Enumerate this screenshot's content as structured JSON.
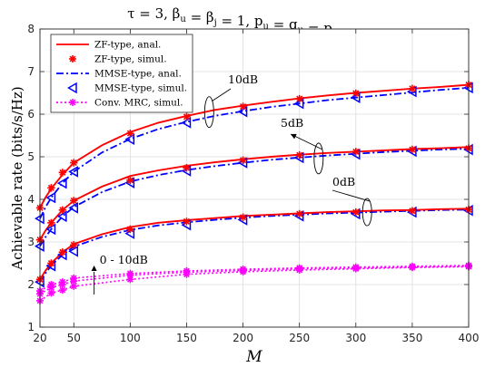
{
  "chart_data": {
    "type": "line",
    "title": "τ = 3, β_u = β_j = 1, p_u = q_u = p_j = q_j",
    "xlabel": "M",
    "ylabel": "Achievable rate (bits/s/Hz)",
    "xlim": [
      20,
      400
    ],
    "ylim": [
      1,
      8
    ],
    "xticks": [
      20,
      50,
      100,
      150,
      200,
      250,
      300,
      350,
      400
    ],
    "yticks": [
      1,
      2,
      3,
      4,
      5,
      6,
      7,
      8
    ],
    "grid": true,
    "legend_position": "top-left",
    "legend": [
      {
        "label": "ZF-type, anal.",
        "color": "#ff0000",
        "style": "solid",
        "marker": "none"
      },
      {
        "label": "ZF-type, simul.",
        "color": "#ff0000",
        "style": "none",
        "marker": "asterisk"
      },
      {
        "label": "MMSE-type, anal.",
        "color": "#0000ff",
        "style": "dashdot",
        "marker": "none"
      },
      {
        "label": "MMSE-type, simul.",
        "color": "#0000ff",
        "style": "none",
        "marker": "triangle-left"
      },
      {
        "label": "Conv. MRC, simul.",
        "color": "#ff00ff",
        "style": "dotted",
        "marker": "asterisk"
      }
    ],
    "x_analytic": [
      20,
      25,
      30,
      40,
      50,
      75,
      100,
      125,
      150,
      175,
      200,
      225,
      250,
      275,
      300,
      325,
      350,
      375,
      400
    ],
    "x_simul": [
      20,
      30,
      40,
      50,
      100,
      150,
      200,
      250,
      300,
      350,
      400
    ],
    "x_mrc": [
      20,
      30,
      40,
      50,
      100,
      150,
      200,
      250,
      300,
      350,
      400
    ],
    "groups": [
      {
        "snr": "10dB",
        "zf_anal": [
          3.8,
          4.05,
          4.25,
          4.58,
          4.86,
          5.27,
          5.58,
          5.8,
          5.96,
          6.1,
          6.2,
          6.29,
          6.37,
          6.44,
          6.5,
          6.55,
          6.6,
          6.64,
          6.69
        ],
        "mmse_anal": [
          3.55,
          3.82,
          4.04,
          4.38,
          4.65,
          5.1,
          5.42,
          5.65,
          5.82,
          5.96,
          6.07,
          6.17,
          6.25,
          6.33,
          6.39,
          6.45,
          6.51,
          6.57,
          6.62
        ],
        "zf_simul": [
          3.8,
          4.27,
          4.63,
          4.86,
          5.55,
          5.94,
          6.18,
          6.36,
          6.49,
          6.6,
          6.69
        ],
        "mmse_simul": [
          3.55,
          4.04,
          4.38,
          4.65,
          5.41,
          5.8,
          6.06,
          6.25,
          6.39,
          6.53,
          6.62
        ]
      },
      {
        "snr": "5dB",
        "zf_anal": [
          3.05,
          3.27,
          3.45,
          3.75,
          3.97,
          4.3,
          4.55,
          4.68,
          4.79,
          4.87,
          4.94,
          5.0,
          5.05,
          5.09,
          5.12,
          5.15,
          5.18,
          5.2,
          5.23
        ],
        "mmse_anal": [
          2.9,
          3.12,
          3.3,
          3.6,
          3.82,
          4.17,
          4.42,
          4.57,
          4.69,
          4.78,
          4.86,
          4.93,
          4.98,
          5.03,
          5.07,
          5.11,
          5.14,
          5.17,
          5.19
        ],
        "zf_simul": [
          3.05,
          3.45,
          3.75,
          3.97,
          4.45,
          4.74,
          4.92,
          5.04,
          5.12,
          5.17,
          5.2
        ],
        "mmse_simul": [
          2.9,
          3.3,
          3.6,
          3.8,
          4.39,
          4.67,
          4.86,
          4.98,
          5.06,
          5.13,
          5.17
        ]
      },
      {
        "snr": "0dB",
        "zf_anal": [
          2.12,
          2.33,
          2.5,
          2.76,
          2.95,
          3.18,
          3.35,
          3.45,
          3.51,
          3.56,
          3.61,
          3.64,
          3.67,
          3.7,
          3.72,
          3.74,
          3.75,
          3.77,
          3.78
        ],
        "mmse_anal": [
          2.06,
          2.27,
          2.44,
          2.7,
          2.89,
          3.12,
          3.28,
          3.39,
          3.46,
          3.52,
          3.57,
          3.61,
          3.64,
          3.67,
          3.69,
          3.71,
          3.73,
          3.75,
          3.76
        ],
        "zf_simul": [
          2.12,
          2.5,
          2.76,
          2.93,
          3.3,
          3.48,
          3.58,
          3.66,
          3.7,
          3.73,
          3.76
        ],
        "mmse_simul": [
          2.06,
          2.44,
          2.7,
          2.78,
          3.2,
          3.4,
          3.52,
          3.61,
          3.66,
          3.7,
          3.74
        ]
      }
    ],
    "mrc": [
      {
        "snr": "10dB",
        "values": [
          1.85,
          2.0,
          2.06,
          2.15,
          2.26,
          2.32,
          2.36,
          2.39,
          2.41,
          2.43,
          2.45
        ]
      },
      {
        "snr": "5dB",
        "values": [
          1.78,
          1.93,
          2.0,
          2.08,
          2.22,
          2.29,
          2.33,
          2.37,
          2.39,
          2.41,
          2.43
        ]
      },
      {
        "snr": "0dB",
        "values": [
          1.62,
          1.8,
          1.87,
          1.96,
          2.12,
          2.24,
          2.3,
          2.34,
          2.37,
          2.4,
          2.42
        ]
      }
    ],
    "annotations": [
      "10dB",
      "5dB",
      "0dB",
      "0 - 10dB"
    ]
  }
}
